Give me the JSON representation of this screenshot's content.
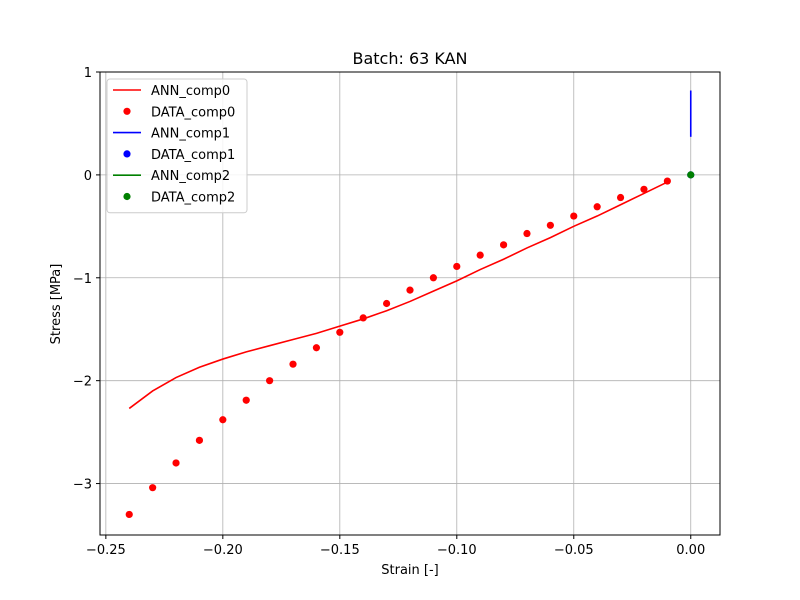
{
  "chart_data": {
    "type": "line",
    "title": "Batch: 63 KAN",
    "xlabel": "Strain [-]",
    "ylabel": "Stress [MPa]",
    "xlim": [
      -0.2525,
      0.0125
    ],
    "ylim": [
      -3.5,
      1.0
    ],
    "x_ticks": [
      -0.25,
      -0.2,
      -0.15,
      -0.1,
      -0.05,
      0.0
    ],
    "x_tick_labels": [
      "−0.25",
      "−0.20",
      "−0.15",
      "−0.10",
      "−0.05",
      "0.00"
    ],
    "y_ticks": [
      1,
      0,
      -1,
      -2,
      -3
    ],
    "y_tick_labels": [
      "1",
      "0",
      "−1",
      "−2",
      "−3"
    ],
    "grid": true,
    "legend_position": "top-left",
    "series": [
      {
        "name": "ANN_comp0",
        "kind": "line",
        "color": "#ff0000",
        "x": [
          -0.24,
          -0.23,
          -0.22,
          -0.21,
          -0.2,
          -0.19,
          -0.18,
          -0.17,
          -0.16,
          -0.15,
          -0.14,
          -0.13,
          -0.12,
          -0.11,
          -0.1,
          -0.09,
          -0.08,
          -0.07,
          -0.06,
          -0.05,
          -0.04,
          -0.03,
          -0.02,
          -0.01
        ],
        "y": [
          -2.27,
          -2.1,
          -1.97,
          -1.87,
          -1.79,
          -1.72,
          -1.66,
          -1.6,
          -1.54,
          -1.47,
          -1.4,
          -1.32,
          -1.23,
          -1.13,
          -1.03,
          -0.92,
          -0.82,
          -0.71,
          -0.61,
          -0.5,
          -0.4,
          -0.29,
          -0.18,
          -0.07
        ]
      },
      {
        "name": "DATA_comp0",
        "kind": "scatter",
        "color": "#ff0000",
        "x": [
          -0.24,
          -0.23,
          -0.22,
          -0.21,
          -0.2,
          -0.19,
          -0.18,
          -0.17,
          -0.16,
          -0.15,
          -0.14,
          -0.13,
          -0.12,
          -0.11,
          -0.1,
          -0.09,
          -0.08,
          -0.07,
          -0.06,
          -0.05,
          -0.04,
          -0.03,
          -0.02,
          -0.01
        ],
        "y": [
          -3.3,
          -3.04,
          -2.8,
          -2.58,
          -2.38,
          -2.19,
          -2.0,
          -1.84,
          -1.68,
          -1.53,
          -1.39,
          -1.25,
          -1.12,
          -1.0,
          -0.89,
          -0.78,
          -0.68,
          -0.57,
          -0.49,
          -0.4,
          -0.31,
          -0.22,
          -0.14,
          -0.06
        ]
      },
      {
        "name": "ANN_comp1",
        "kind": "line",
        "color": "#0000ff",
        "x": [
          0.0,
          0.0
        ],
        "y": [
          0.37,
          0.82
        ]
      },
      {
        "name": "DATA_comp1",
        "kind": "scatter",
        "color": "#0000ff",
        "x": [
          0.0
        ],
        "y": [
          0.0
        ]
      },
      {
        "name": "ANN_comp2",
        "kind": "line",
        "color": "#008000",
        "x": [
          0.0,
          0.0
        ],
        "y": [
          0.0,
          0.0
        ]
      },
      {
        "name": "DATA_comp2",
        "kind": "scatter",
        "color": "#008000",
        "x": [
          0.0
        ],
        "y": [
          0.0
        ]
      }
    ]
  }
}
